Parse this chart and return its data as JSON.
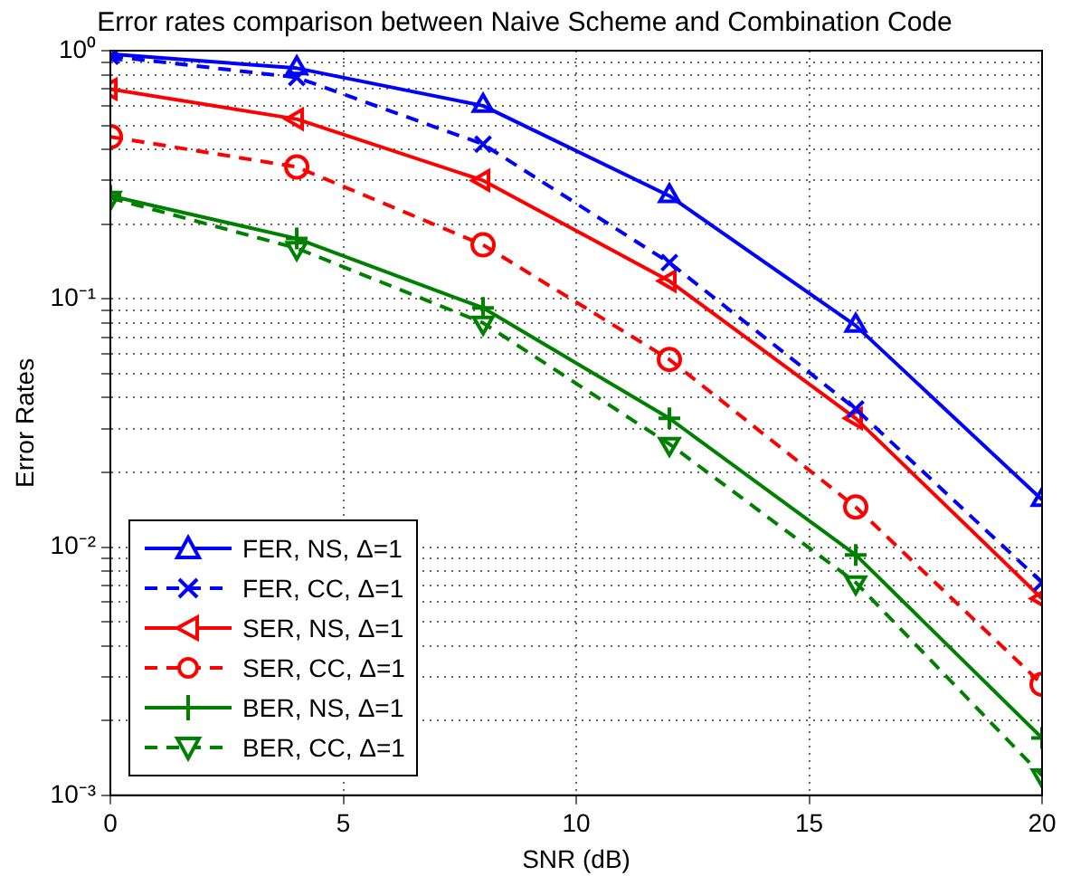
{
  "chart_data": {
    "type": "line",
    "title": "Error rates comparison between Naive Scheme and Combination Code",
    "xlabel": "SNR (dB)",
    "ylabel": "Error Rates",
    "x": [
      0,
      4,
      8,
      12,
      16,
      20
    ],
    "series": [
      {
        "name": "FER, NS, Δ=1",
        "color": "#0000ff",
        "line_style": "solid",
        "marker": "triangle",
        "values": [
          0.97,
          0.85,
          0.6,
          0.26,
          0.078,
          0.0155
        ]
      },
      {
        "name": "FER, CC, Δ=1",
        "color": "#0000ff",
        "line_style": "dashed",
        "marker": "cross",
        "values": [
          0.95,
          0.78,
          0.42,
          0.14,
          0.036,
          0.0072
        ]
      },
      {
        "name": "SER, NS, Δ=1",
        "color": "#ff0000",
        "line_style": "solid",
        "marker": "triangle-left",
        "values": [
          0.7,
          0.53,
          0.3,
          0.118,
          0.033,
          0.0062
        ]
      },
      {
        "name": "SER, CC, Δ=1",
        "color": "#ff0000",
        "line_style": "dashed",
        "marker": "circle",
        "values": [
          0.45,
          0.34,
          0.165,
          0.057,
          0.0145,
          0.0028
        ]
      },
      {
        "name": "BER, NS, Δ=1",
        "color": "#008000",
        "line_style": "solid",
        "marker": "plus",
        "values": [
          0.26,
          0.175,
          0.092,
          0.033,
          0.0093,
          0.0017
        ]
      },
      {
        "name": "BER, CC, Δ=1",
        "color": "#008000",
        "line_style": "dashed",
        "marker": "triangle-down",
        "values": [
          0.255,
          0.16,
          0.08,
          0.026,
          0.0072,
          0.0012
        ]
      }
    ],
    "xlim": [
      0,
      20
    ],
    "xticks": [
      0,
      5,
      10,
      15,
      20
    ],
    "ylim": [
      0.001,
      1
    ],
    "log": "y",
    "yticks": [
      {
        "value": 0.001,
        "label": "10⁻³"
      },
      {
        "value": 0.002,
        "label": null
      },
      {
        "value": 0.003,
        "label": null
      },
      {
        "value": 0.004,
        "label": null
      },
      {
        "value": 0.005,
        "label": null
      },
      {
        "value": 0.006,
        "label": null
      },
      {
        "value": 0.007,
        "label": null
      },
      {
        "value": 0.008,
        "label": null
      },
      {
        "value": 0.009,
        "label": null
      },
      {
        "value": 0.01,
        "label": "10⁻²"
      },
      {
        "value": 0.02,
        "label": null
      },
      {
        "value": 0.03,
        "label": null
      },
      {
        "value": 0.04,
        "label": null
      },
      {
        "value": 0.05,
        "label": null
      },
      {
        "value": 0.06,
        "label": null
      },
      {
        "value": 0.07,
        "label": null
      },
      {
        "value": 0.08,
        "label": null
      },
      {
        "value": 0.09,
        "label": null
      },
      {
        "value": 0.1,
        "label": "10⁻¹"
      },
      {
        "value": 0.2,
        "label": null
      },
      {
        "value": 0.3,
        "label": null
      },
      {
        "value": 0.4,
        "label": null
      },
      {
        "value": 0.5,
        "label": null
      },
      {
        "value": 0.6,
        "label": null
      },
      {
        "value": 0.7,
        "label": null
      },
      {
        "value": 0.8,
        "label": null
      },
      {
        "value": 0.9,
        "label": null
      },
      {
        "value": 1,
        "label": "10⁰"
      }
    ],
    "grid": true,
    "legend": "bottom left"
  }
}
